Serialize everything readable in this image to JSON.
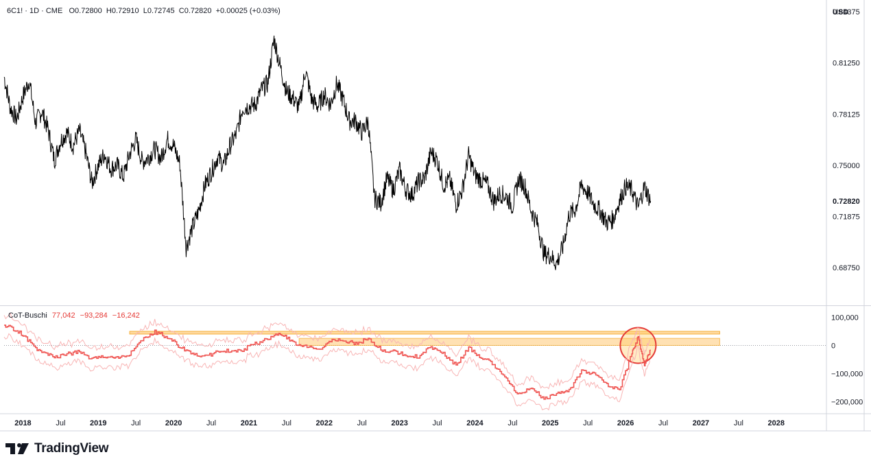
{
  "header": {
    "symbol": "6C1! · 1D · CME",
    "open_label": "O",
    "open": "0.72800",
    "high_label": "H",
    "high": "0.72910",
    "low_label": "L",
    "low": "0.72745",
    "close_label": "C",
    "close": "0.72820",
    "change": "+0.00025 (+0.03%)"
  },
  "currency": "USD",
  "cot_header": {
    "name": "CoT-Buschi",
    "v1": "77,042",
    "v2": "−93,284",
    "v3": "−16,242"
  },
  "brand": "TradingView",
  "colors": {
    "price": "#000000",
    "cot": "#ef5350",
    "cot_band": "#f8b4b4",
    "zone_fill": "#ffd89a",
    "zone_stroke": "#f5a623",
    "circle": "#e53935"
  },
  "chart_data": [
    {
      "type": "line",
      "title": "6C1! · 1D · CME",
      "ylim": [
        0.665,
        0.85
      ],
      "yticks": [
        "0.84375",
        "0.81250",
        "0.78125",
        "0.75000",
        "0.71875",
        "0.68750"
      ],
      "last_value": "0.72820",
      "xlim": [
        "2017-10",
        "2028-09"
      ],
      "x_labels": [
        "2018",
        "Jul",
        "2019",
        "Jul",
        "2020",
        "Jul",
        "2021",
        "Jul",
        "2022",
        "Jul",
        "2023",
        "Jul",
        "2024",
        "Jul",
        "2025",
        "Jul",
        "2026",
        "Jul",
        "2027",
        "Jul",
        "2028"
      ],
      "x_label_dates": [
        "2018-01",
        "2018-07",
        "2019-01",
        "2019-07",
        "2020-01",
        "2020-07",
        "2021-01",
        "2021-07",
        "2022-01",
        "2022-07",
        "2023-01",
        "2023-07",
        "2024-01",
        "2024-07",
        "2025-01",
        "2025-07",
        "2026-01",
        "2026-07",
        "2027-01",
        "2027-07",
        "2028-01"
      ],
      "series": [
        {
          "points": [
            [
              "2017-10",
              0.804
            ],
            [
              "2017-11",
              0.785
            ],
            [
              "2017-12",
              0.778
            ],
            [
              "2018-01",
              0.792
            ],
            [
              "2018-02",
              0.802
            ],
            [
              "2018-03",
              0.776
            ],
            [
              "2018-04",
              0.783
            ],
            [
              "2018-05",
              0.772
            ],
            [
              "2018-06",
              0.753
            ],
            [
              "2018-07",
              0.765
            ],
            [
              "2018-08",
              0.77
            ],
            [
              "2018-09",
              0.762
            ],
            [
              "2018-10",
              0.771
            ],
            [
              "2018-11",
              0.758
            ],
            [
              "2018-12",
              0.739
            ],
            [
              "2019-01",
              0.75
            ],
            [
              "2019-02",
              0.757
            ],
            [
              "2019-03",
              0.748
            ],
            [
              "2019-04",
              0.75
            ],
            [
              "2019-05",
              0.743
            ],
            [
              "2019-06",
              0.757
            ],
            [
              "2019-07",
              0.766
            ],
            [
              "2019-08",
              0.752
            ],
            [
              "2019-09",
              0.755
            ],
            [
              "2019-10",
              0.76
            ],
            [
              "2019-11",
              0.754
            ],
            [
              "2019-12",
              0.766
            ],
            [
              "2020-01",
              0.762
            ],
            [
              "2020-02",
              0.751
            ],
            [
              "2020-03",
              0.7
            ],
            [
              "2020-04",
              0.712
            ],
            [
              "2020-05",
              0.722
            ],
            [
              "2020-06",
              0.738
            ],
            [
              "2020-07",
              0.746
            ],
            [
              "2020-08",
              0.755
            ],
            [
              "2020-09",
              0.75
            ],
            [
              "2020-10",
              0.762
            ],
            [
              "2020-11",
              0.769
            ],
            [
              "2020-12",
              0.785
            ],
            [
              "2021-01",
              0.786
            ],
            [
              "2021-02",
              0.787
            ],
            [
              "2021-03",
              0.796
            ],
            [
              "2021-04",
              0.8
            ],
            [
              "2021-05",
              0.827
            ],
            [
              "2021-06",
              0.81
            ],
            [
              "2021-07",
              0.795
            ],
            [
              "2021-08",
              0.791
            ],
            [
              "2021-09",
              0.785
            ],
            [
              "2021-10",
              0.808
            ],
            [
              "2021-11",
              0.79
            ],
            [
              "2021-12",
              0.786
            ],
            [
              "2022-01",
              0.793
            ],
            [
              "2022-02",
              0.787
            ],
            [
              "2022-03",
              0.8
            ],
            [
              "2022-04",
              0.79
            ],
            [
              "2022-05",
              0.777
            ],
            [
              "2022-06",
              0.777
            ],
            [
              "2022-07",
              0.77
            ],
            [
              "2022-08",
              0.777
            ],
            [
              "2022-09",
              0.73
            ],
            [
              "2022-10",
              0.727
            ],
            [
              "2022-11",
              0.742
            ],
            [
              "2022-12",
              0.735
            ],
            [
              "2023-01",
              0.747
            ],
            [
              "2023-02",
              0.735
            ],
            [
              "2023-03",
              0.732
            ],
            [
              "2023-04",
              0.74
            ],
            [
              "2023-05",
              0.742
            ],
            [
              "2023-06",
              0.758
            ],
            [
              "2023-07",
              0.753
            ],
            [
              "2023-08",
              0.738
            ],
            [
              "2023-09",
              0.741
            ],
            [
              "2023-10",
              0.726
            ],
            [
              "2023-11",
              0.735
            ],
            [
              "2023-12",
              0.756
            ],
            [
              "2024-01",
              0.744
            ],
            [
              "2024-02",
              0.741
            ],
            [
              "2024-03",
              0.738
            ],
            [
              "2024-04",
              0.728
            ],
            [
              "2024-05",
              0.733
            ],
            [
              "2024-06",
              0.731
            ],
            [
              "2024-07",
              0.725
            ],
            [
              "2024-08",
              0.742
            ],
            [
              "2024-09",
              0.737
            ],
            [
              "2024-10",
              0.722
            ],
            [
              "2024-11",
              0.714
            ],
            [
              "2024-12",
              0.696
            ],
            [
              "2025-01",
              0.695
            ],
            [
              "2025-02",
              0.69
            ],
            [
              "2025-03",
              0.7
            ],
            [
              "2025-04",
              0.72
            ],
            [
              "2025-05",
              0.723
            ],
            [
              "2025-06",
              0.738
            ],
            [
              "2025-07",
              0.733
            ],
            [
              "2025-08",
              0.726
            ],
            [
              "2025-09",
              0.722
            ],
            [
              "2025-10",
              0.715
            ],
            [
              "2025-11",
              0.717
            ],
            [
              "2025-12",
              0.728
            ],
            [
              "2026-01",
              0.737
            ],
            [
              "2026-02",
              0.735
            ],
            [
              "2026-03",
              0.724
            ],
            [
              "2026-04",
              0.737
            ],
            [
              "2026-05",
              0.7282
            ]
          ]
        }
      ]
    },
    {
      "type": "line",
      "title": "CoT-Buschi",
      "ylim": [
        -240000,
        135000
      ],
      "yticks": [
        "100,000",
        "0",
        "−100,000",
        "−200,000"
      ],
      "ytick_values": [
        100000,
        0,
        -100000,
        -200000
      ],
      "zone": {
        "y_from": 0,
        "y_to": 50000,
        "x_from": "2019-06",
        "x_to": "2027-04"
      },
      "highlight_circle": {
        "x": "2026-03",
        "y": 0
      },
      "series": [
        {
          "name": "CoT-Buschi",
          "points": [
            [
              "2017-10",
              70000
            ],
            [
              "2017-12",
              55000
            ],
            [
              "2018-02",
              15000
            ],
            [
              "2018-04",
              -28000
            ],
            [
              "2018-06",
              -40000
            ],
            [
              "2018-08",
              -32000
            ],
            [
              "2018-10",
              -22000
            ],
            [
              "2018-12",
              -50000
            ],
            [
              "2019-02",
              -38000
            ],
            [
              "2019-04",
              -45000
            ],
            [
              "2019-06",
              -30000
            ],
            [
              "2019-08",
              18000
            ],
            [
              "2019-10",
              48000
            ],
            [
              "2019-12",
              30000
            ],
            [
              "2020-02",
              -5000
            ],
            [
              "2020-04",
              -30000
            ],
            [
              "2020-06",
              -38000
            ],
            [
              "2020-08",
              -25000
            ],
            [
              "2020-10",
              -18000
            ],
            [
              "2020-12",
              -15000
            ],
            [
              "2021-02",
              5000
            ],
            [
              "2021-04",
              25000
            ],
            [
              "2021-06",
              45000
            ],
            [
              "2021-08",
              10000
            ],
            [
              "2021-10",
              -5000
            ],
            [
              "2021-12",
              -15000
            ],
            [
              "2022-02",
              15000
            ],
            [
              "2022-04",
              18000
            ],
            [
              "2022-06",
              5000
            ],
            [
              "2022-08",
              25000
            ],
            [
              "2022-10",
              -15000
            ],
            [
              "2022-12",
              -22000
            ],
            [
              "2023-02",
              -35000
            ],
            [
              "2023-04",
              -40000
            ],
            [
              "2023-06",
              -5000
            ],
            [
              "2023-08",
              -30000
            ],
            [
              "2023-10",
              -70000
            ],
            [
              "2023-12",
              -10000
            ],
            [
              "2024-02",
              -40000
            ],
            [
              "2024-04",
              -70000
            ],
            [
              "2024-06",
              -120000
            ],
            [
              "2024-08",
              -175000
            ],
            [
              "2024-10",
              -150000
            ],
            [
              "2024-12",
              -190000
            ],
            [
              "2025-02",
              -170000
            ],
            [
              "2025-04",
              -160000
            ],
            [
              "2025-06",
              -90000
            ],
            [
              "2025-08",
              -100000
            ],
            [
              "2025-10",
              -140000
            ],
            [
              "2025-12",
              -160000
            ],
            [
              "2026-02",
              -30000
            ],
            [
              "2026-03",
              30000
            ],
            [
              "2026-04",
              -70000
            ],
            [
              "2026-05",
              -16242
            ]
          ]
        }
      ]
    }
  ]
}
